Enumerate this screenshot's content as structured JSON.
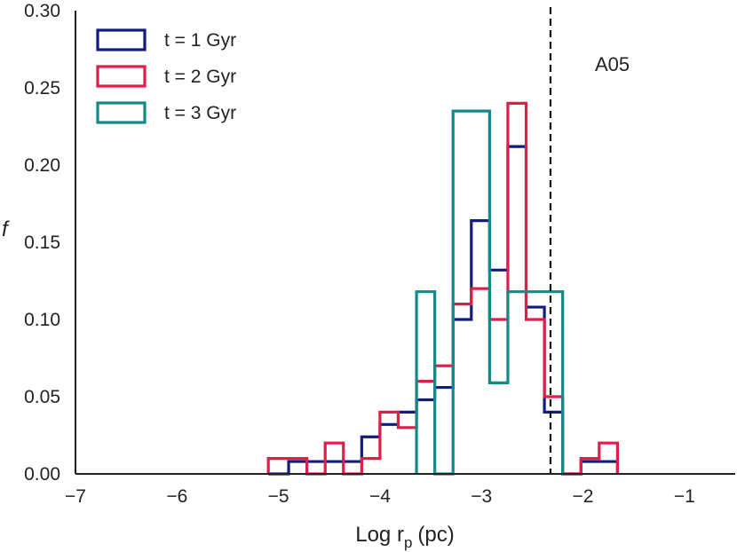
{
  "chart_data": {
    "type": "histogram-step",
    "title": "",
    "xlabel": "Log r",
    "xlabel_sub": "p",
    "xlabel_unit": "(pc)",
    "ylabel": "f",
    "xlim": [
      -7,
      -0.5
    ],
    "ylim": [
      0,
      0.3
    ],
    "xticks": [
      -7,
      -6,
      -5,
      -4,
      -3,
      -2,
      -1
    ],
    "xtick_labels": [
      "−7",
      "−6",
      "−5",
      "−4",
      "−3",
      "−2",
      "−1"
    ],
    "yticks": [
      0,
      0.05,
      0.1,
      0.15,
      0.2,
      0.25,
      0.3
    ],
    "ytick_labels": [
      "0.00",
      "0.05",
      "0.10",
      "0.15",
      "0.20",
      "0.25",
      "0.30"
    ],
    "legend_position": "top-left",
    "grid": false,
    "series": [
      {
        "name": "t = 1 Gyr",
        "color": "#111c80",
        "bin_edges": [
          -5.1,
          -4.9,
          -4.72,
          -4.54,
          -4.36,
          -4.18,
          -4.0,
          -3.82,
          -3.64,
          -3.46,
          -3.28,
          -3.1,
          -2.92,
          -2.74,
          -2.56,
          -2.38,
          -2.2,
          -2.02,
          -1.84,
          -1.66
        ],
        "values": [
          0,
          0.008,
          0.008,
          0.008,
          0.008,
          0.024,
          0.032,
          0.04,
          0.048,
          0.056,
          0.1,
          0.164,
          0.132,
          0.212,
          0.108,
          0.04,
          0,
          0.008,
          0.008
        ]
      },
      {
        "name": "t = 2 Gyr",
        "color": "#dc1e48",
        "bin_edges": [
          -5.1,
          -4.9,
          -4.72,
          -4.54,
          -4.36,
          -4.18,
          -4.0,
          -3.82,
          -3.64,
          -3.46,
          -3.28,
          -3.1,
          -2.92,
          -2.74,
          -2.56,
          -2.38,
          -2.2,
          -2.02,
          -1.84,
          -1.66
        ],
        "values": [
          0.01,
          0.01,
          0,
          0.02,
          0,
          0.01,
          0.04,
          0.03,
          0.06,
          0.07,
          0.11,
          0.12,
          0.1,
          0.24,
          0.1,
          0.05,
          0,
          0.01,
          0.02
        ]
      },
      {
        "name": "t = 3 Gyr",
        "color": "#13898a",
        "bin_edges": [
          -3.64,
          -3.46,
          -3.28,
          -2.92,
          -2.74,
          -2.2
        ],
        "values": [
          0.118,
          0,
          0.235,
          0.059,
          0.118
        ]
      }
    ],
    "vline": {
      "x": -2.32,
      "style": "dashed",
      "color": "#111111"
    },
    "annotation": {
      "text": "A05"
    }
  }
}
